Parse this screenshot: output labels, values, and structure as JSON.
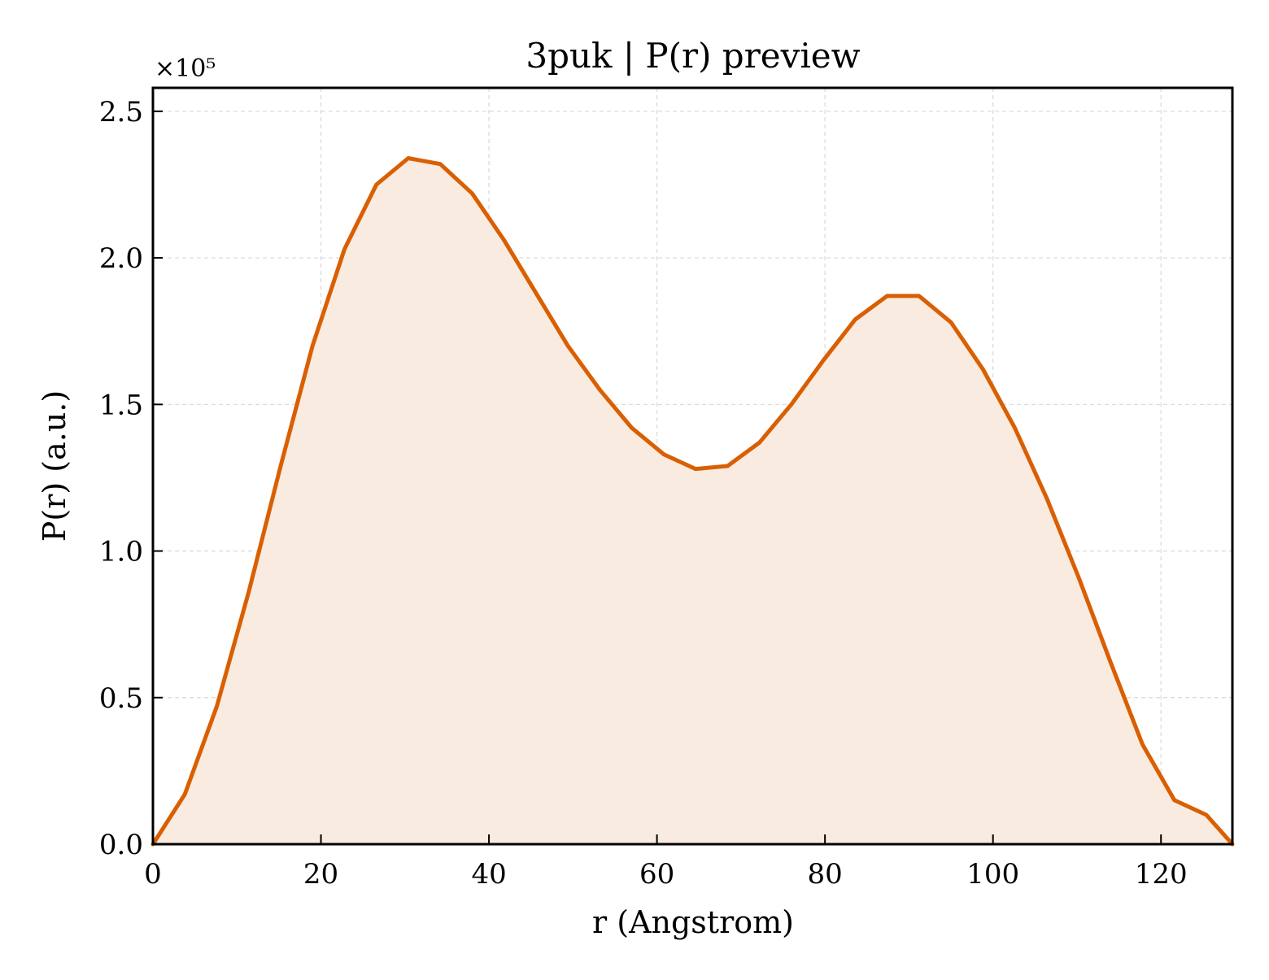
{
  "chart_data": {
    "type": "area",
    "title": "3puk | P(r) preview",
    "xlabel": "r (Angstrom)",
    "ylabel": "P(r) (a.u.)",
    "y_offset_label": "×10⁵",
    "y_multiplier": 100000,
    "xlim": [
      0,
      128.5
    ],
    "ylim": [
      0,
      2.58
    ],
    "x_ticks": [
      0,
      20,
      40,
      60,
      80,
      100,
      120
    ],
    "x_tick_labels": [
      "0",
      "20",
      "40",
      "60",
      "80",
      "100",
      "120"
    ],
    "y_ticks": [
      0,
      0.5,
      1.0,
      1.5,
      2.0,
      2.5
    ],
    "y_tick_labels": [
      "0.0",
      "0.5",
      "1.0",
      "1.5",
      "2.0",
      "2.5"
    ],
    "grid": true,
    "colors": {
      "line": "#d95f02",
      "fill": "#f9ebe0",
      "grid": "#d8d8d8"
    },
    "series": [
      {
        "x": [
          0,
          3.8,
          7.6,
          11.4,
          15.2,
          19.0,
          22.8,
          26.6,
          30.4,
          34.2,
          38.0,
          41.8,
          45.6,
          49.4,
          53.2,
          57.0,
          60.8,
          64.6,
          68.4,
          72.2,
          76.0,
          79.8,
          83.6,
          87.4,
          91.2,
          95.0,
          98.8,
          102.6,
          106.4,
          110.2,
          114.0,
          117.8,
          121.6,
          125.4,
          128.5
        ],
        "y": [
          0.0,
          0.17,
          0.47,
          0.86,
          1.29,
          1.7,
          2.03,
          2.25,
          2.34,
          2.32,
          2.22,
          2.06,
          1.88,
          1.7,
          1.55,
          1.42,
          1.33,
          1.28,
          1.29,
          1.37,
          1.5,
          1.65,
          1.79,
          1.87,
          1.87,
          1.78,
          1.62,
          1.42,
          1.18,
          0.91,
          0.62,
          0.34,
          0.15,
          0.1,
          0.0
        ]
      }
    ]
  }
}
